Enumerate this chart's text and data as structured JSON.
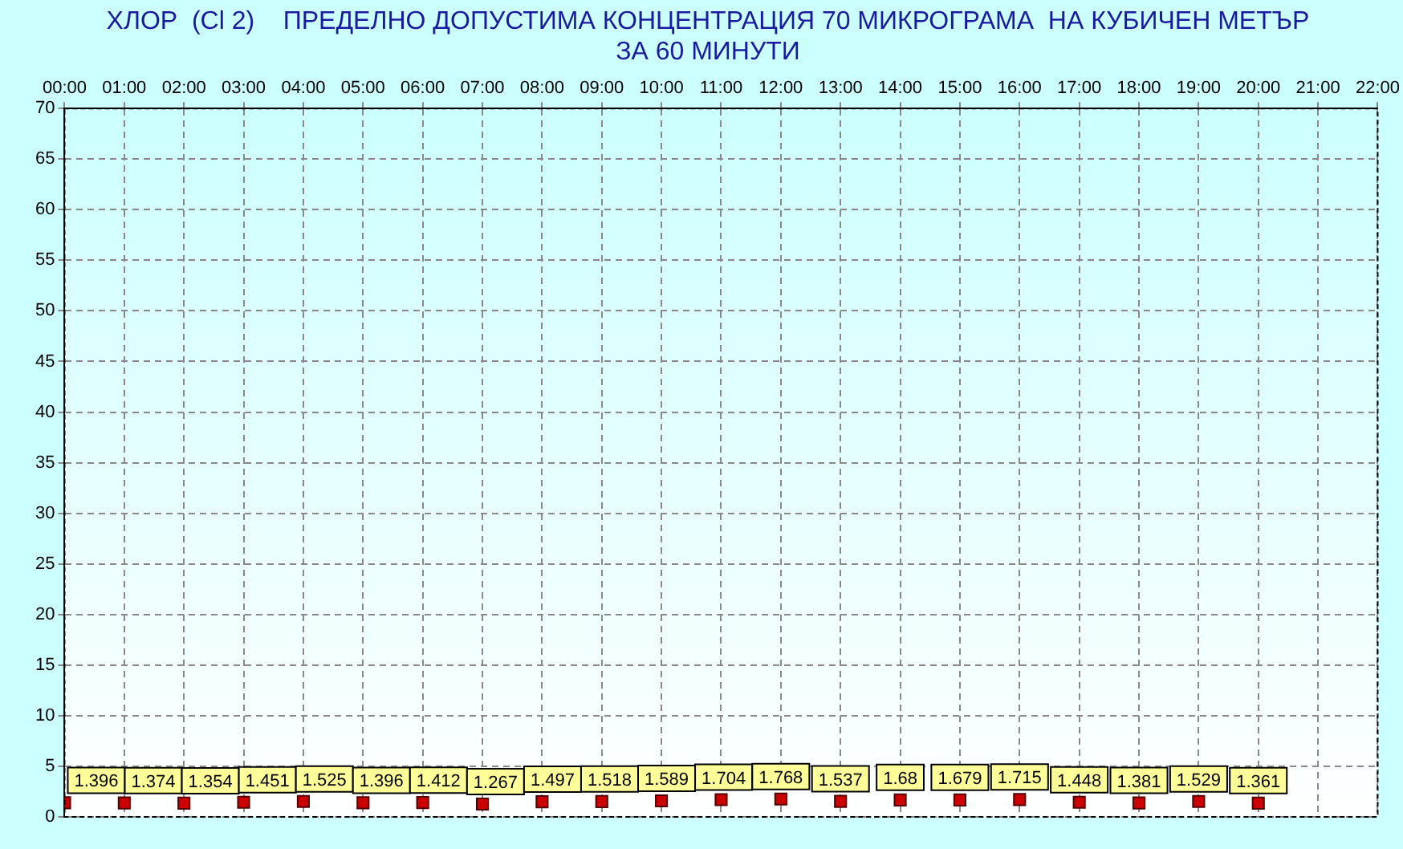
{
  "chart_data": {
    "type": "scatter",
    "title": "ХЛОР  (Cl 2)    ПРЕДЕЛНО ДОПУСТИМА КОНЦЕНТРАЦИЯ 70 МИКРОГРАМА  НА КУБИЧЕН МЕТЪР",
    "subtitle": "ЗА 60 МИНУТИ",
    "x": [
      0,
      1,
      2,
      3,
      4,
      5,
      6,
      7,
      8,
      9,
      10,
      11,
      12,
      13,
      14,
      15,
      16,
      17,
      18,
      19,
      20
    ],
    "series": [
      {
        "color": "#cc0000",
        "values": [
          1.396,
          1.374,
          1.354,
          1.451,
          1.525,
          1.396,
          1.412,
          1.267,
          1.497,
          1.518,
          1.589,
          1.704,
          1.768,
          1.537,
          1.68,
          1.679,
          1.715,
          1.448,
          1.381,
          1.529,
          1.361
        ]
      }
    ],
    "xlim": [
      0,
      22
    ],
    "xticks": [
      {
        "value": 0,
        "label": "00:00"
      },
      {
        "value": 1,
        "label": "01:00"
      },
      {
        "value": 2,
        "label": "02:00"
      },
      {
        "value": 3,
        "label": "03:00"
      },
      {
        "value": 4,
        "label": "04:00"
      },
      {
        "value": 5,
        "label": "05:00"
      },
      {
        "value": 6,
        "label": "06:00"
      },
      {
        "value": 7,
        "label": "07:00"
      },
      {
        "value": 8,
        "label": "08:00"
      },
      {
        "value": 9,
        "label": "09:00"
      },
      {
        "value": 10,
        "label": "10:00"
      },
      {
        "value": 11,
        "label": "11:00"
      },
      {
        "value": 12,
        "label": "12:00"
      },
      {
        "value": 13,
        "label": "13:00"
      },
      {
        "value": 14,
        "label": "14:00"
      },
      {
        "value": 15,
        "label": "15:00"
      },
      {
        "value": 16,
        "label": "16:00"
      },
      {
        "value": 17,
        "label": "17:00"
      },
      {
        "value": 18,
        "label": "18:00"
      },
      {
        "value": 19,
        "label": "19:00"
      },
      {
        "value": 20,
        "label": "20:00"
      },
      {
        "value": 21,
        "label": "21:00"
      },
      {
        "value": 22,
        "label": "22:00"
      }
    ],
    "ylim": [
      0,
      70
    ],
    "yticks": [
      0,
      5,
      10,
      15,
      20,
      25,
      30,
      35,
      40,
      45,
      50,
      55,
      60,
      65,
      70
    ],
    "grid": true,
    "legend": false,
    "marker": "square",
    "data_labels": true
  }
}
